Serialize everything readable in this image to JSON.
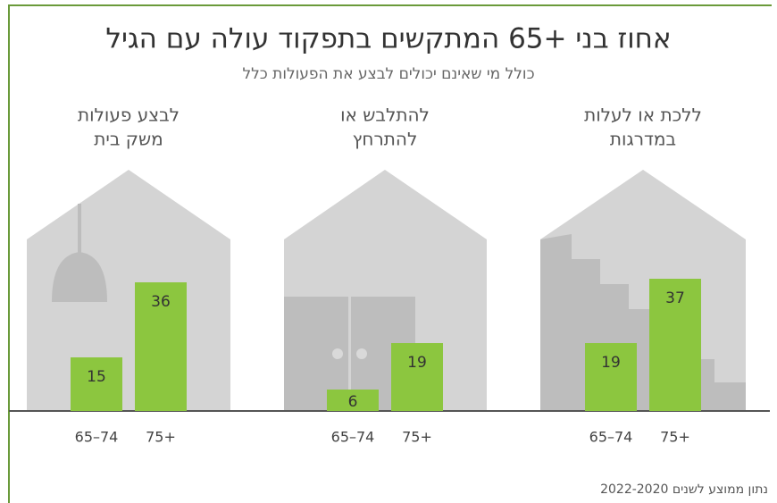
{
  "header": {
    "title": "אחוז בני +65 המתקשים בתפקוד עולה עם הגיל",
    "subtitle": "כולל מי שאינם יכולים לבצע את הפעולות כלל"
  },
  "chart_data": [
    {
      "type": "bar",
      "title": [
        "לבצע פעולות",
        "משק בית"
      ],
      "categories": [
        "65–74",
        "75+"
      ],
      "values": [
        15,
        36
      ],
      "color": "#8cc63f"
    },
    {
      "type": "bar",
      "title": [
        "להתלבש או",
        "להתרחץ"
      ],
      "categories": [
        "65–74",
        "75+"
      ],
      "values": [
        6,
        19
      ],
      "color": "#8cc63f"
    },
    {
      "type": "bar",
      "title": [
        "ללכת או לעלות",
        "במדרגות"
      ],
      "categories": [
        "65–74",
        "75+"
      ],
      "values": [
        19,
        37
      ],
      "color": "#8cc63f"
    }
  ],
  "footer": {
    "note": "נתון ממוצע לשנים 2022-2020"
  }
}
